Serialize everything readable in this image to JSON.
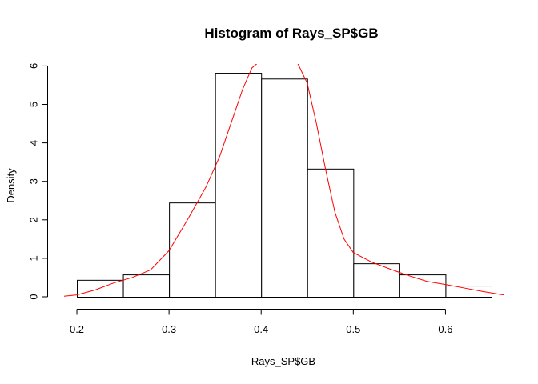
{
  "chart_data": {
    "type": "bar",
    "title": "Histogram of Rays_SP$GB",
    "xlabel": "Rays_SP$GB",
    "ylabel": "Density",
    "xlim": [
      0.18,
      0.67
    ],
    "ylim": [
      0,
      6.05
    ],
    "x_ticks": [
      "0.2",
      "0.3",
      "0.4",
      "0.5",
      "0.6"
    ],
    "y_ticks": [
      "0",
      "1",
      "2",
      "3",
      "4",
      "5",
      "6"
    ],
    "bins": [
      {
        "x0": 0.2,
        "x1": 0.25,
        "density": 0.44
      },
      {
        "x0": 0.25,
        "x1": 0.3,
        "density": 0.58
      },
      {
        "x0": 0.3,
        "x1": 0.35,
        "density": 2.45
      },
      {
        "x0": 0.35,
        "x1": 0.4,
        "density": 5.82
      },
      {
        "x0": 0.4,
        "x1": 0.45,
        "density": 5.67
      },
      {
        "x0": 0.45,
        "x1": 0.5,
        "density": 3.33
      },
      {
        "x0": 0.5,
        "x1": 0.55,
        "density": 0.87
      },
      {
        "x0": 0.55,
        "x1": 0.6,
        "density": 0.58
      },
      {
        "x0": 0.6,
        "x1": 0.65,
        "density": 0.29
      }
    ],
    "density_curve": {
      "color": "#ff0000",
      "points": [
        [
          0.18,
          0.0
        ],
        [
          0.2,
          0.05
        ],
        [
          0.22,
          0.18
        ],
        [
          0.24,
          0.36
        ],
        [
          0.26,
          0.5
        ],
        [
          0.28,
          0.7
        ],
        [
          0.3,
          1.2
        ],
        [
          0.32,
          2.0
        ],
        [
          0.34,
          2.85
        ],
        [
          0.355,
          3.65
        ],
        [
          0.37,
          4.7
        ],
        [
          0.38,
          5.4
        ],
        [
          0.39,
          5.95
        ],
        [
          0.395,
          6.05
        ],
        [
          0.398,
          6.15
        ],
        [
          0.4,
          6.25
        ],
        [
          0.41,
          6.55
        ],
        [
          0.42,
          6.6
        ],
        [
          0.43,
          6.4
        ],
        [
          0.438,
          6.15
        ],
        [
          0.44,
          6.05
        ],
        [
          0.45,
          5.55
        ],
        [
          0.46,
          4.5
        ],
        [
          0.47,
          3.3
        ],
        [
          0.48,
          2.2
        ],
        [
          0.49,
          1.5
        ],
        [
          0.5,
          1.15
        ],
        [
          0.52,
          0.9
        ],
        [
          0.54,
          0.72
        ],
        [
          0.56,
          0.55
        ],
        [
          0.58,
          0.4
        ],
        [
          0.6,
          0.32
        ],
        [
          0.62,
          0.23
        ],
        [
          0.64,
          0.14
        ],
        [
          0.66,
          0.06
        ],
        [
          0.67,
          0.03
        ]
      ]
    }
  }
}
